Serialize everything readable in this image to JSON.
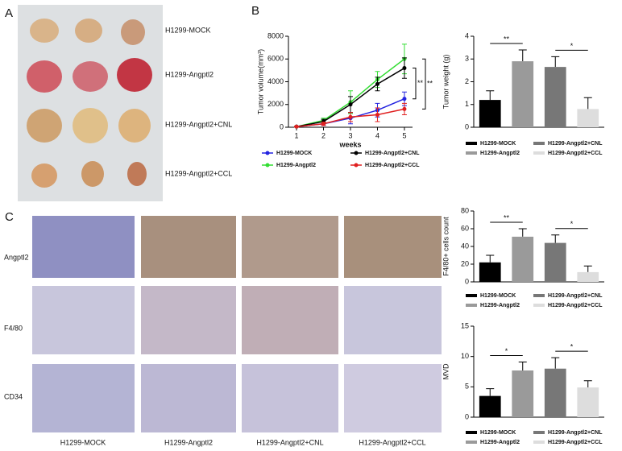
{
  "panels": {
    "a": "A",
    "b": "B",
    "c": "C"
  },
  "tumor_labels": [
    "H1299-MOCK",
    "H1299-Angptl2",
    "H1299-Angptl2+CNL",
    "H1299-Angptl2+CCL"
  ],
  "ihc": {
    "rows": [
      "Angptl2",
      "F4/80",
      "CD34"
    ],
    "columns": [
      "H1299-MOCK",
      "H1299-Angptl2",
      "H1299-Angptl2+CNL",
      "H1299-Angptl2+CCL"
    ]
  },
  "chart_data": [
    {
      "type": "line",
      "xlabel": "weeks",
      "ylabel": "Tumor volume(mm³)",
      "x": [
        1,
        2,
        3,
        4,
        5
      ],
      "xlim": [
        0.7,
        5.3
      ],
      "xticks": [
        1,
        2,
        3,
        4,
        5
      ],
      "ylim": [
        0,
        8000
      ],
      "yticks": [
        0,
        2000,
        4000,
        6000,
        8000
      ],
      "series": [
        {
          "name": "H1299-MOCK",
          "color": "#2323e0",
          "values": [
            50,
            300,
            800,
            1500,
            2500
          ],
          "errors": [
            50,
            150,
            500,
            600,
            600
          ]
        },
        {
          "name": "H1299-Angptl2",
          "color": "#33dd33",
          "values": [
            50,
            600,
            2200,
            4200,
            6000
          ],
          "errors": [
            50,
            200,
            1000,
            700,
            1300
          ]
        },
        {
          "name": "H1299-Angptl2+CNL",
          "color": "#000000",
          "values": [
            50,
            500,
            2000,
            3800,
            5200
          ],
          "errors": [
            50,
            200,
            700,
            600,
            900
          ]
        },
        {
          "name": "H1299-Angptl2+CCL",
          "color": "#e02020",
          "values": [
            50,
            300,
            900,
            1100,
            1600
          ],
          "errors": [
            50,
            150,
            400,
            600,
            500
          ]
        }
      ],
      "annotations": [
        "**",
        "**"
      ]
    },
    {
      "type": "bar",
      "ylabel": "Tumor weight (g)",
      "categories": [
        "H1299-MOCK",
        "H1299-Angptl2",
        "H1299-Angptl2+CNL",
        "H1299-Angptl2+CCL"
      ],
      "colors": [
        "#000000",
        "#9a9a9a",
        "#777777",
        "#dddddd"
      ],
      "values": [
        1.2,
        2.9,
        2.65,
        0.8
      ],
      "errors": [
        0.4,
        0.5,
        0.45,
        0.5
      ],
      "ylim": [
        0,
        4
      ],
      "yticks": [
        0,
        1,
        2,
        3,
        4
      ],
      "annotations": [
        "**",
        "*"
      ]
    },
    {
      "type": "bar",
      "ylabel": "F4/80+ cells count",
      "categories": [
        "H1299-MOCK",
        "H1299-Angptl2",
        "H1299-Angptl2+CNL",
        "H1299-Angptl2+CCL"
      ],
      "colors": [
        "#000000",
        "#9a9a9a",
        "#777777",
        "#dddddd"
      ],
      "values": [
        22,
        51,
        44,
        11
      ],
      "errors": [
        8,
        9,
        9,
        7
      ],
      "ylim": [
        0,
        80
      ],
      "yticks": [
        0,
        20,
        40,
        60,
        80
      ],
      "annotations": [
        "**",
        "*"
      ]
    },
    {
      "type": "bar",
      "ylabel": "MVD",
      "categories": [
        "H1299-MOCK",
        "H1299-Angptl2",
        "H1299-Angptl2+CNL",
        "H1299-Angptl2+CCL"
      ],
      "colors": [
        "#000000",
        "#9a9a9a",
        "#777777",
        "#dddddd"
      ],
      "values": [
        3.5,
        7.7,
        8,
        4.9
      ],
      "errors": [
        1.2,
        1.4,
        1.8,
        1.1
      ],
      "ylim": [
        0,
        15
      ],
      "yticks": [
        0,
        5,
        10,
        15
      ],
      "annotations": [
        "*",
        "*"
      ]
    }
  ]
}
